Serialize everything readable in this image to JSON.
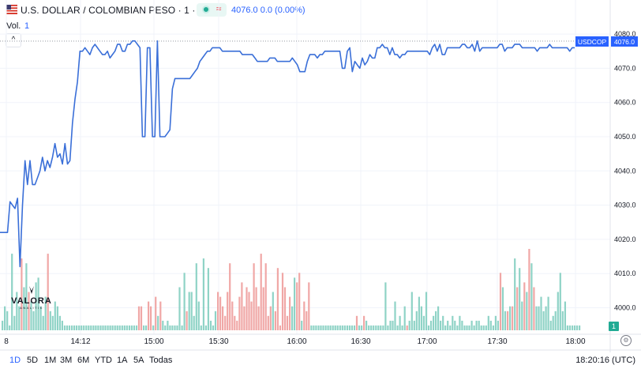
{
  "header": {
    "symbol_title": "U.S. DOLLAR / COLOMBIAN PESO · 1 · ICE",
    "price_info": "4076.0  0.0 (0.00%)",
    "flag_icon": "us-flag-icon",
    "approx_icon": "≈"
  },
  "volume": {
    "label": "Vol.",
    "value": "1",
    "badge": "1"
  },
  "collapse_button": "^",
  "price_scale": {
    "ticks": [
      "4080.0",
      "4070.0",
      "4060.0",
      "4050.0",
      "4040.0",
      "4030.0",
      "4020.0",
      "4010.0",
      "4000.0"
    ],
    "symbol_tag": "USDCOP",
    "last_price_tag": "4076.0"
  },
  "time_axis": {
    "ticks": [
      "8",
      "14:12",
      "15:00",
      "15:30",
      "16:00",
      "16:30",
      "17:00",
      "17:30",
      "18:00"
    ]
  },
  "range_buttons": [
    "1D",
    "5D",
    "1M",
    "3M",
    "6M",
    "YTD",
    "1A",
    "5A",
    "Todas"
  ],
  "active_range": "1D",
  "clock": "18:20:16 (UTC)",
  "logo": {
    "name": "VALORA",
    "subtitle": "ANALITIK"
  },
  "colors": {
    "line": "#3a6fd8",
    "volume_up": "#8fd3c6",
    "volume_down": "#f0a7a6",
    "accent": "#2962ff"
  },
  "chart_data": {
    "type": "line",
    "title": "U.S. DOLLAR / COLOMBIAN PESO · 1 · ICE",
    "ylim": [
      3998,
      4083
    ],
    "ticks_y": [
      4000,
      4010,
      4020,
      4030,
      4040,
      4050,
      4060,
      4070,
      4080
    ],
    "x_ticks": [
      "8",
      "14:12",
      "15:00",
      "15:30",
      "16:00",
      "16:30",
      "17:00",
      "17:30",
      "18:00"
    ],
    "last_price": 4076.0,
    "price": [
      4022,
      4022,
      4022,
      4022,
      4031,
      4030,
      4029,
      4032,
      4012,
      4030,
      4043,
      4036,
      4043,
      4036,
      4036,
      4038,
      4040,
      4044,
      4040,
      4043,
      4041,
      4044,
      4048,
      4044,
      4045,
      4042,
      4048,
      4042,
      4043,
      4054,
      4061,
      4066,
      4075,
      4075,
      4076,
      4075,
      4074,
      4076,
      4077,
      4076,
      4075,
      4074,
      4074,
      4075,
      4073,
      4074,
      4075,
      4077,
      4077,
      4075,
      4075,
      4077,
      4077,
      4078,
      4078,
      4077,
      4076,
      4050,
      4050,
      4076,
      4076,
      4050,
      4050,
      4078,
      4050,
      4050,
      4050,
      4051,
      4052,
      4064,
      4067,
      4067,
      4067,
      4067,
      4067,
      4067,
      4067,
      4068,
      4069,
      4070,
      4072,
      4073,
      4074,
      4075,
      4075,
      4076,
      4076,
      4076,
      4076,
      4075,
      4075,
      4075,
      4075,
      4075,
      4075,
      4075,
      4075,
      4074,
      4074,
      4074,
      4074,
      4074,
      4073,
      4072,
      4072,
      4072,
      4072,
      4072,
      4073,
      4073,
      4073,
      4072,
      4072,
      4072,
      4072,
      4072,
      4072,
      4073,
      4072,
      4071,
      4069,
      4069,
      4069,
      4072,
      4074,
      4074,
      4074,
      4073,
      4074,
      4074,
      4075,
      4075,
      4075,
      4075,
      4075,
      4075,
      4075,
      4070,
      4070,
      4075,
      4076,
      4069,
      4072,
      4071,
      4070,
      4073,
      4071,
      4072,
      4074,
      4073,
      4073,
      4076,
      4076,
      4077,
      4076,
      4076,
      4074,
      4076,
      4074,
      4074,
      4073,
      4074,
      4074,
      4075,
      4075,
      4075,
      4075,
      4075,
      4075,
      4075,
      4075,
      4075,
      4074,
      4076,
      4077,
      4075,
      4077,
      4074,
      4074,
      4076,
      4076,
      4076,
      4076,
      4076,
      4076,
      4077,
      4077,
      4076,
      4076,
      4077,
      4075,
      4078,
      4075,
      4076,
      4076,
      4076,
      4076,
      4076,
      4076,
      4076,
      4077,
      4077,
      4075,
      4076,
      4076,
      4076,
      4077,
      4077,
      4077,
      4076,
      4076,
      4076,
      4076,
      4076,
      4076,
      4075,
      4076,
      4076,
      4076,
      4076,
      4077,
      4076,
      4076,
      4076,
      4076,
      4076,
      4076,
      4076,
      4075,
      4076,
      4076
    ],
    "volume": [
      2,
      5,
      4,
      1,
      16,
      3,
      8,
      5,
      15,
      9,
      14,
      8,
      6,
      4,
      10,
      11,
      5,
      3,
      7,
      16,
      4,
      3,
      6,
      5,
      3,
      2,
      1,
      1,
      1,
      1,
      1,
      1,
      1,
      1,
      1,
      1,
      1,
      1,
      1,
      1,
      1,
      1,
      1,
      1,
      1,
      1,
      1,
      1,
      1,
      1,
      1,
      1,
      1,
      1,
      1,
      1,
      1,
      5,
      5,
      1,
      1,
      6,
      5,
      1,
      7,
      3,
      6,
      2,
      1,
      2,
      1,
      1,
      1,
      1,
      9,
      1,
      12,
      4,
      8,
      8,
      3,
      14,
      6,
      1,
      15,
      1,
      13,
      2,
      1,
      4,
      8,
      7,
      5,
      3,
      8,
      14,
      6,
      3,
      2,
      7,
      10,
      5,
      9,
      8,
      6,
      14,
      9,
      5,
      16,
      9,
      14,
      3,
      5,
      8,
      4,
      13,
      1,
      12,
      9,
      3,
      7,
      5,
      11,
      10,
      12,
      2,
      6,
      4,
      10,
      1,
      1,
      1,
      1,
      1,
      1,
      1,
      1,
      1,
      1,
      1,
      1,
      1,
      1,
      1,
      1,
      1,
      1,
      1,
      3,
      1,
      1,
      3,
      2,
      1,
      1,
      1,
      1,
      1,
      1,
      1,
      10,
      1,
      2,
      2,
      6,
      1,
      3,
      1,
      5,
      1,
      2,
      8,
      2,
      4,
      7,
      5,
      3,
      8,
      1,
      2,
      3,
      4,
      5,
      2,
      3,
      1,
      2,
      1,
      3,
      2,
      1,
      3,
      2,
      1,
      1,
      1,
      2,
      1,
      2,
      2,
      1,
      1,
      1,
      3,
      2,
      1,
      3,
      2,
      12,
      9,
      4,
      4,
      5,
      5,
      15,
      9,
      13,
      6,
      10,
      8,
      17,
      14,
      9,
      5,
      5,
      7,
      4,
      5,
      7,
      2,
      3,
      4,
      8,
      12,
      4,
      6,
      1,
      1,
      1,
      1,
      1,
      1
    ],
    "volume_dir": [
      1,
      1,
      1,
      1,
      1,
      1,
      1,
      1,
      0,
      1,
      1,
      0,
      1,
      1,
      1,
      1,
      1,
      1,
      1,
      0,
      1,
      1,
      1,
      1,
      1,
      1,
      1,
      1,
      1,
      1,
      1,
      1,
      1,
      1,
      1,
      1,
      1,
      1,
      1,
      1,
      1,
      1,
      1,
      1,
      1,
      1,
      1,
      1,
      1,
      1,
      1,
      1,
      1,
      1,
      1,
      1,
      1,
      0,
      0,
      1,
      1,
      0,
      0,
      1,
      0,
      1,
      0,
      1,
      1,
      1,
      1,
      1,
      1,
      1,
      1,
      1,
      1,
      0,
      1,
      1,
      1,
      1,
      1,
      1,
      1,
      1,
      1,
      1,
      1,
      1,
      0,
      0,
      0,
      0,
      0,
      0,
      0,
      0,
      0,
      0,
      0,
      0,
      0,
      0,
      0,
      0,
      0,
      0,
      0,
      0,
      0,
      0,
      0,
      1,
      0,
      0,
      0,
      0,
      0,
      0,
      0,
      1,
      1,
      0,
      0,
      1,
      0,
      0,
      0,
      1,
      1,
      1,
      1,
      1,
      1,
      1,
      1,
      1,
      1,
      1,
      1,
      1,
      1,
      1,
      1,
      1,
      1,
      1,
      0,
      1,
      1,
      0,
      1,
      1,
      1,
      1,
      1,
      1,
      1,
      1,
      1,
      1,
      1,
      1,
      1,
      1,
      1,
      1,
      1,
      0,
      1,
      1,
      1,
      1,
      1,
      1,
      1,
      1,
      1,
      1,
      1,
      1,
      1,
      1,
      1,
      1,
      1,
      1,
      1,
      1,
      1,
      1,
      1,
      1,
      1,
      1,
      1,
      1,
      1,
      1,
      1,
      1,
      1,
      1,
      1,
      1,
      1,
      1,
      0,
      1,
      1,
      0,
      1,
      0,
      1,
      0,
      1,
      1,
      0,
      1,
      0,
      1,
      0,
      1,
      1,
      1,
      1,
      1,
      1,
      1,
      1,
      1,
      1,
      1,
      1,
      1,
      1,
      1,
      1,
      1,
      1,
      1
    ]
  }
}
